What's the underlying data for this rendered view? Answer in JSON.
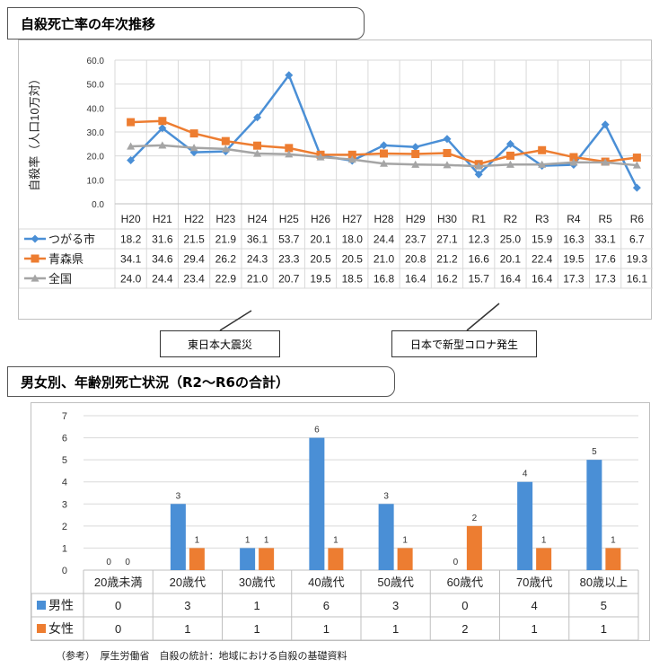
{
  "section1": {
    "title": "自殺死亡率の年次推移"
  },
  "section2": {
    "title": "男女別、年齢別死亡状況（R2～R6の合計）"
  },
  "notes": {
    "earthquake": "東日本大震災",
    "corona": "日本で新型コロナ発生"
  },
  "footnote": "（参考）　厚生労働省　自殺の統計：地域における自殺の基礎資料",
  "colors": {
    "blue": "#4a8fd6",
    "orange": "#ed7d31",
    "gray": "#a5a5a5"
  },
  "chart_data": [
    {
      "type": "line",
      "ylabel": "自殺率（人口10万対）",
      "ylim": [
        0,
        60
      ],
      "yticks": [
        "0.0",
        "10.0",
        "20.0",
        "30.0",
        "40.0",
        "50.0",
        "60.0"
      ],
      "grid": true,
      "categories": [
        "H20",
        "H21",
        "H22",
        "H23",
        "H24",
        "H25",
        "H26",
        "H27",
        "H28",
        "H29",
        "H30",
        "R1",
        "R2",
        "R3",
        "R4",
        "R5",
        "R6"
      ],
      "series": [
        {
          "name": "つがる市",
          "color": "#4a8fd6",
          "marker": "diamond",
          "values": [
            18.2,
            31.6,
            21.5,
            21.9,
            36.1,
            53.7,
            20.1,
            18.0,
            24.4,
            23.7,
            27.1,
            12.3,
            25.0,
            15.9,
            16.3,
            33.1,
            6.7
          ]
        },
        {
          "name": "青森県",
          "color": "#ed7d31",
          "marker": "square",
          "values": [
            34.1,
            34.6,
            29.4,
            26.2,
            24.3,
            23.3,
            20.5,
            20.5,
            21.0,
            20.8,
            21.2,
            16.6,
            20.1,
            22.4,
            19.5,
            17.6,
            19.3
          ]
        },
        {
          "name": "全国",
          "color": "#a5a5a5",
          "marker": "triangle",
          "values": [
            24.0,
            24.4,
            23.4,
            22.9,
            21.0,
            20.7,
            19.5,
            18.5,
            16.8,
            16.4,
            16.2,
            15.7,
            16.4,
            16.4,
            17.3,
            17.3,
            16.1
          ]
        }
      ],
      "table_values": [
        [
          "18.2",
          "31.6",
          "21.5",
          "21.9",
          "36.1",
          "53.7",
          "20.1",
          "18.0",
          "24.4",
          "23.7",
          "27.1",
          "12.3",
          "25.0",
          "15.9",
          "16.3",
          "33.1",
          "6.7"
        ],
        [
          "34.1",
          "34.6",
          "29.4",
          "26.2",
          "24.3",
          "23.3",
          "20.5",
          "20.5",
          "21.0",
          "20.8",
          "21.2",
          "16.6",
          "20.1",
          "22.4",
          "19.5",
          "17.6",
          "19.3"
        ],
        [
          "24.0",
          "24.4",
          "23.4",
          "22.9",
          "21.0",
          "20.7",
          "19.5",
          "18.5",
          "16.8",
          "16.4",
          "16.2",
          "15.7",
          "16.4",
          "16.4",
          "17.3",
          "17.3",
          "16.1"
        ]
      ]
    },
    {
      "type": "bar",
      "ylim": [
        0,
        7
      ],
      "yticks": [
        "0",
        "1",
        "2",
        "3",
        "4",
        "5",
        "6",
        "7"
      ],
      "grid": true,
      "categories": [
        "20歳未満",
        "20歳代",
        "30歳代",
        "40歳代",
        "50歳代",
        "60歳代",
        "70歳代",
        "80歳以上"
      ],
      "series": [
        {
          "name": "男性",
          "color": "#4a8fd6",
          "values": [
            0,
            3,
            1,
            6,
            3,
            0,
            4,
            5
          ]
        },
        {
          "name": "女性",
          "color": "#ed7d31",
          "values": [
            0,
            1,
            1,
            1,
            1,
            2,
            1,
            1
          ]
        }
      ]
    }
  ]
}
